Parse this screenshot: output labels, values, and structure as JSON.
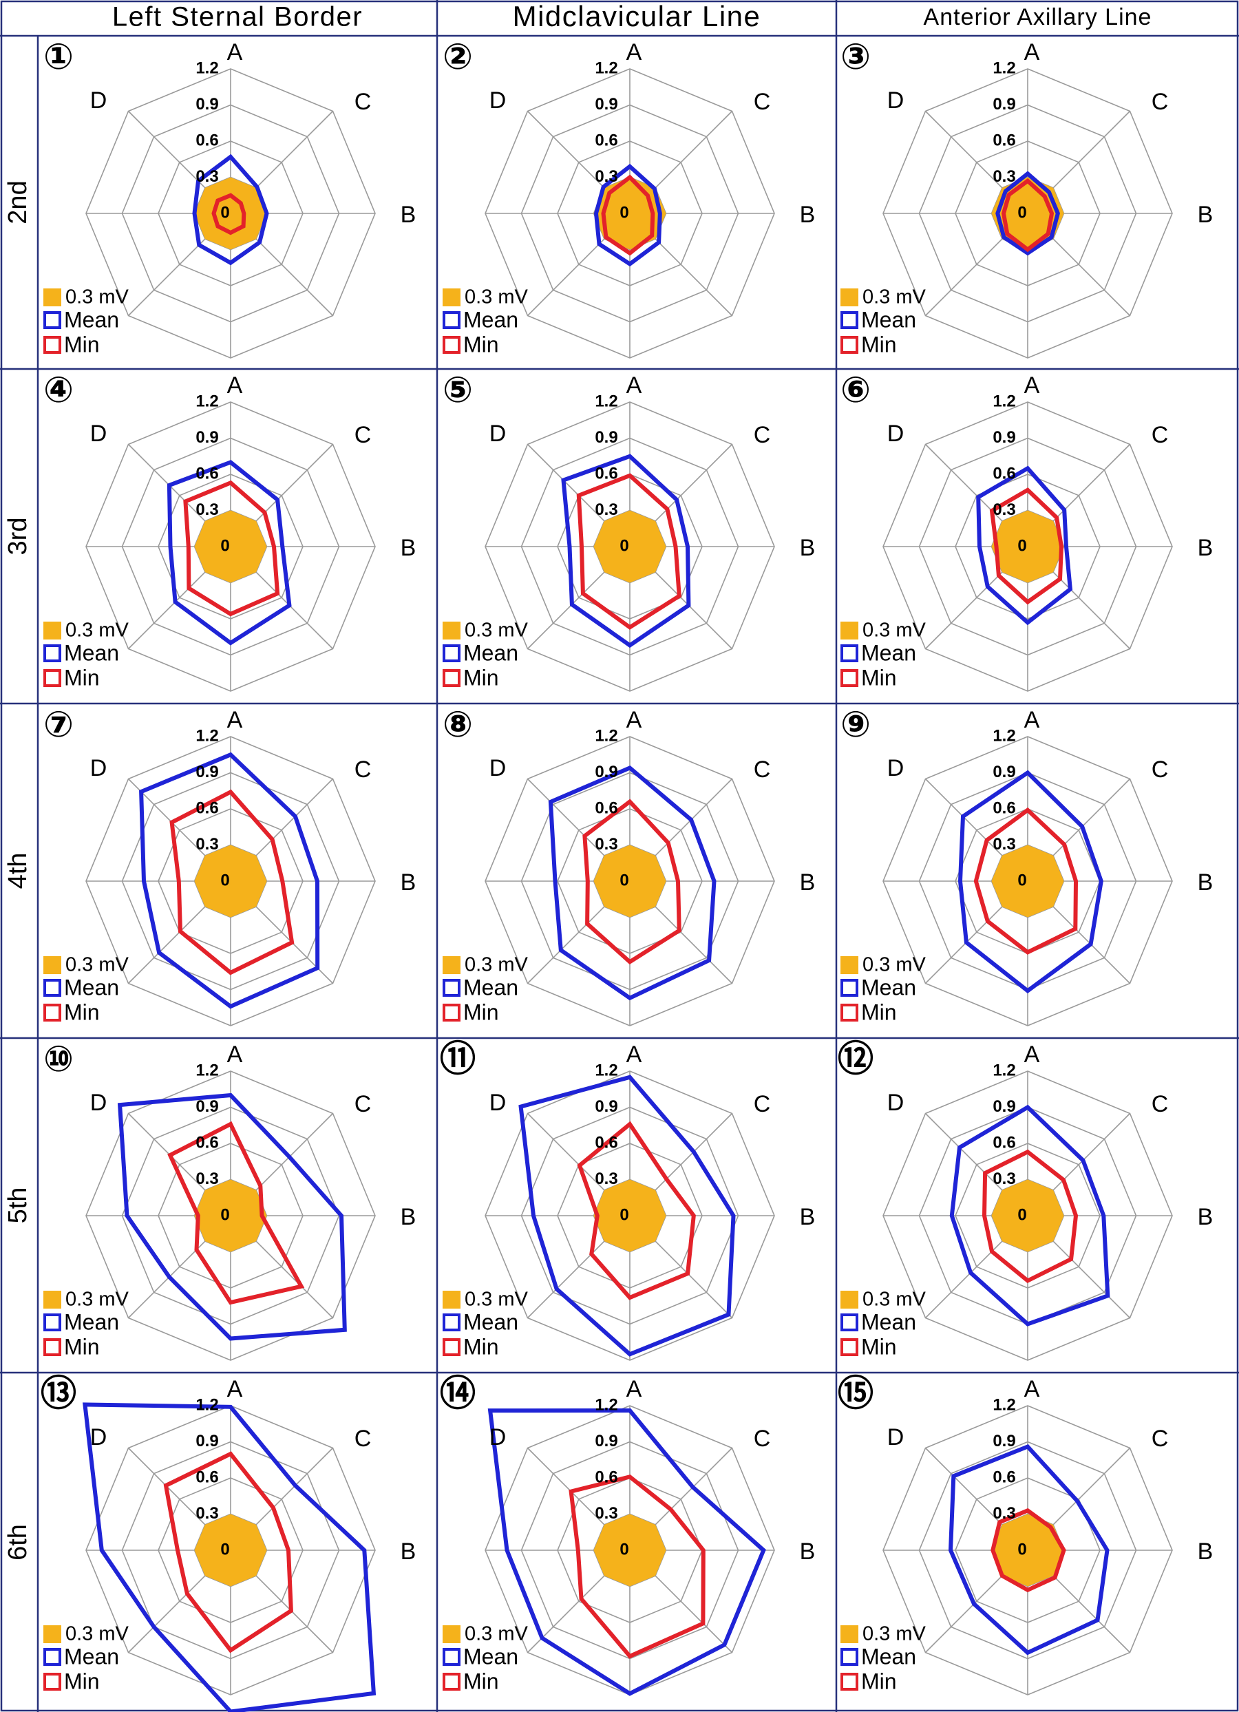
{
  "columns": [
    "Left Sternal Border",
    "Midclavicular Line",
    "Anterior Axillary Line"
  ],
  "rows": [
    "2nd",
    "3rd",
    "4th",
    "5th",
    "6th"
  ],
  "axis_letters": [
    "A",
    "B",
    "C",
    "D"
  ],
  "legend": {
    "fill": "0.3 mV",
    "mean": "Mean",
    "min": "Min"
  },
  "colors": {
    "fill": "#f5b21b",
    "mean": "#1f24d6",
    "min": "#e3222a",
    "grid": "#9a9a9a",
    "frame": "#26307a"
  },
  "chart_data": {
    "type": "radar",
    "axes_count": 8,
    "axis_order": "clockwise from top (A), B at right",
    "rmax": 1.2,
    "ticks": [
      0,
      0.3,
      0.6,
      0.9,
      1.2
    ],
    "tick_labels": [
      "0",
      "0.3",
      "0.6",
      "0.9",
      "1.2"
    ],
    "reference_level": 0.3,
    "panels": [
      {
        "label": "①",
        "mean": [
          0.47,
          0.31,
          0.3,
          0.34,
          0.41,
          0.37,
          0.3,
          0.38
        ],
        "min": [
          0.15,
          0.12,
          0.11,
          0.15,
          0.16,
          0.15,
          0.14,
          0.15
        ]
      },
      {
        "label": "②",
        "mean": [
          0.39,
          0.29,
          0.25,
          0.34,
          0.42,
          0.36,
          0.28,
          0.31
        ],
        "min": [
          0.3,
          0.21,
          0.19,
          0.26,
          0.33,
          0.28,
          0.22,
          0.24
        ]
      },
      {
        "label": "③",
        "mean": [
          0.33,
          0.25,
          0.25,
          0.28,
          0.33,
          0.28,
          0.25,
          0.26
        ],
        "min": [
          0.27,
          0.2,
          0.2,
          0.24,
          0.3,
          0.24,
          0.2,
          0.22
        ]
      },
      {
        "label": "④",
        "mean": [
          0.7,
          0.55,
          0.43,
          0.69,
          0.8,
          0.65,
          0.5,
          0.72
        ],
        "min": [
          0.53,
          0.4,
          0.36,
          0.55,
          0.56,
          0.49,
          0.35,
          0.53
        ]
      },
      {
        "label": "⑤",
        "mean": [
          0.75,
          0.55,
          0.48,
          0.69,
          0.82,
          0.68,
          0.5,
          0.78
        ],
        "min": [
          0.59,
          0.44,
          0.38,
          0.58,
          0.67,
          0.55,
          0.4,
          0.6
        ]
      },
      {
        "label": "⑥",
        "mean": [
          0.65,
          0.43,
          0.32,
          0.5,
          0.63,
          0.47,
          0.4,
          0.58
        ],
        "min": [
          0.47,
          0.34,
          0.28,
          0.38,
          0.46,
          0.34,
          0.26,
          0.42
        ]
      },
      {
        "label": "⑦",
        "mean": [
          1.05,
          0.76,
          0.72,
          1.02,
          1.04,
          0.84,
          0.72,
          1.05
        ],
        "min": [
          0.74,
          0.49,
          0.43,
          0.72,
          0.76,
          0.59,
          0.43,
          0.69
        ]
      },
      {
        "label": "⑧",
        "mean": [
          0.94,
          0.72,
          0.7,
          0.93,
          0.97,
          0.81,
          0.62,
          0.93
        ],
        "min": [
          0.66,
          0.45,
          0.4,
          0.58,
          0.67,
          0.5,
          0.35,
          0.53
        ]
      },
      {
        "label": "⑨",
        "mean": [
          0.9,
          0.64,
          0.61,
          0.74,
          0.91,
          0.72,
          0.56,
          0.76
        ],
        "min": [
          0.59,
          0.43,
          0.4,
          0.56,
          0.59,
          0.47,
          0.43,
          0.48
        ]
      },
      {
        "label": "⑩",
        "mean": [
          1.0,
          0.69,
          0.92,
          1.34,
          1.02,
          0.72,
          0.86,
          1.3
        ],
        "min": [
          0.76,
          0.35,
          0.26,
          0.83,
          0.72,
          0.4,
          0.27,
          0.71
        ]
      },
      {
        "label": "⑪",
        "mean": [
          1.15,
          0.75,
          0.86,
          1.16,
          1.15,
          0.86,
          0.8,
          1.28
        ],
        "min": [
          0.76,
          0.43,
          0.53,
          0.68,
          0.68,
          0.45,
          0.27,
          0.59
        ]
      },
      {
        "label": "⑫",
        "mean": [
          0.9,
          0.65,
          0.63,
          0.94,
          0.9,
          0.67,
          0.63,
          0.8
        ],
        "min": [
          0.53,
          0.42,
          0.4,
          0.51,
          0.54,
          0.42,
          0.36,
          0.5
        ]
      },
      {
        "label": "⑬",
        "mean": [
          1.19,
          0.76,
          1.11,
          1.68,
          1.34,
          0.9,
          1.07,
          1.71
        ],
        "min": [
          0.8,
          0.5,
          0.48,
          0.71,
          0.83,
          0.51,
          0.44,
          0.76
        ]
      },
      {
        "label": "⑭",
        "mean": [
          1.16,
          0.74,
          1.11,
          1.11,
          1.19,
          1.03,
          1.02,
          1.64
        ],
        "min": [
          0.61,
          0.48,
          0.61,
          0.86,
          0.88,
          0.57,
          0.43,
          0.69
        ]
      },
      {
        "label": "⑮",
        "mean": [
          0.86,
          0.58,
          0.66,
          0.82,
          0.85,
          0.63,
          0.64,
          0.87
        ],
        "min": [
          0.33,
          0.27,
          0.3,
          0.32,
          0.33,
          0.3,
          0.29,
          0.33
        ]
      }
    ]
  }
}
